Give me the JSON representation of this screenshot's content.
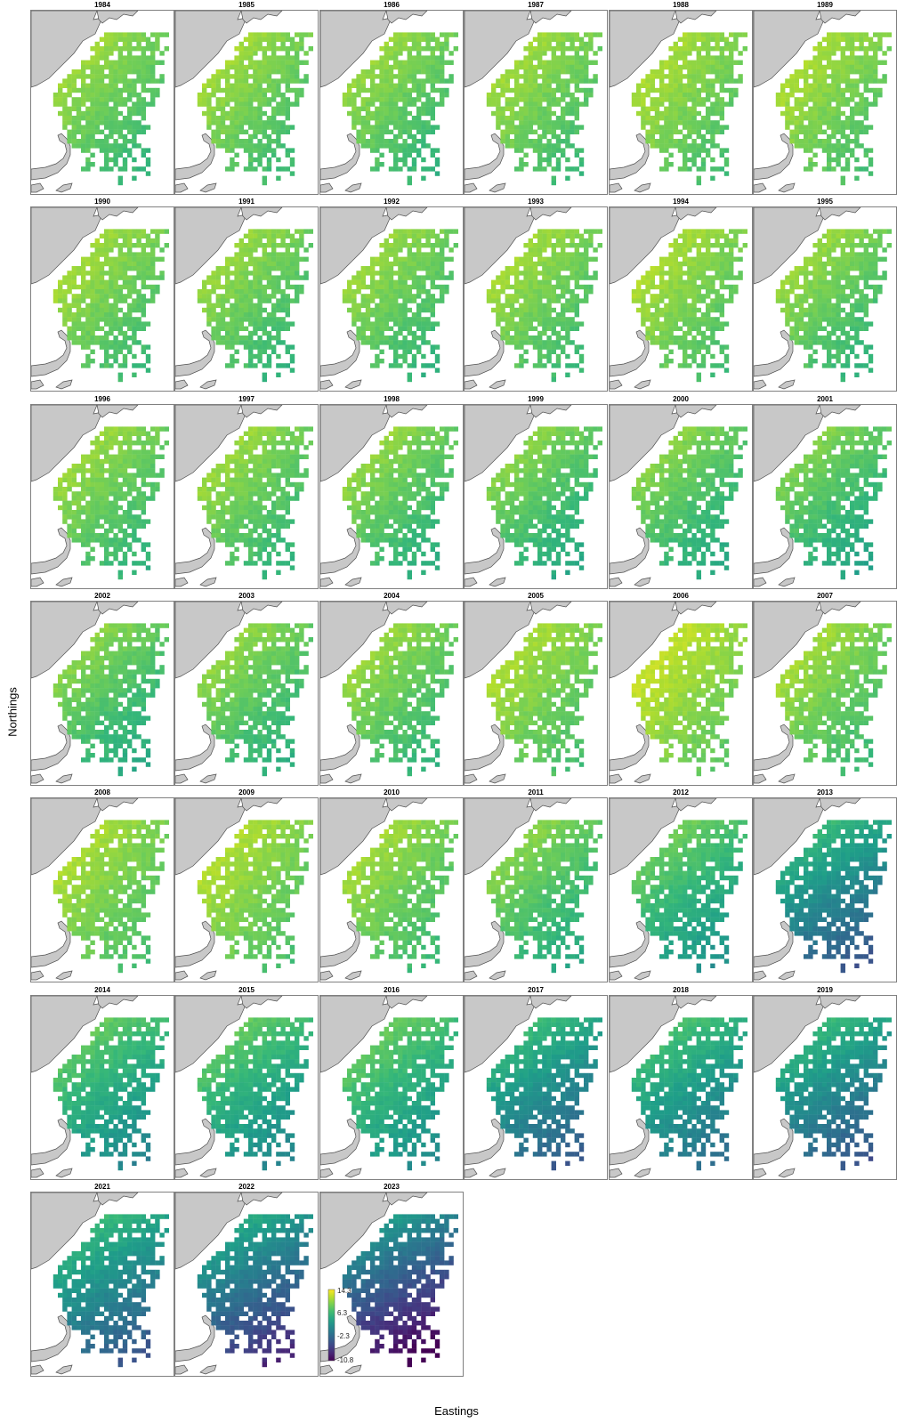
{
  "axes": {
    "xlabel": "Eastings",
    "ylabel": "Northings"
  },
  "panels": [
    "1984",
    "1985",
    "1986",
    "1987",
    "1988",
    "1989",
    "1990",
    "1991",
    "1992",
    "1993",
    "1994",
    "1995",
    "1996",
    "1997",
    "1998",
    "1999",
    "2000",
    "2001",
    "2002",
    "2003",
    "2004",
    "2005",
    "2006",
    "2007",
    "2008",
    "2009",
    "2010",
    "2011",
    "2012",
    "2013",
    "2014",
    "2015",
    "2016",
    "2017",
    "2018",
    "2019",
    "2021",
    "2022",
    "2023"
  ],
  "legend": {
    "ticks": [
      "14.3",
      "6.3",
      "-2.3",
      "-10.8"
    ],
    "min": -10.8,
    "max": 14.8,
    "palette": "viridis"
  },
  "colors": {
    "land": "#c8c8c8",
    "land_stroke": "#505050",
    "panel_border": "#808080"
  }
}
